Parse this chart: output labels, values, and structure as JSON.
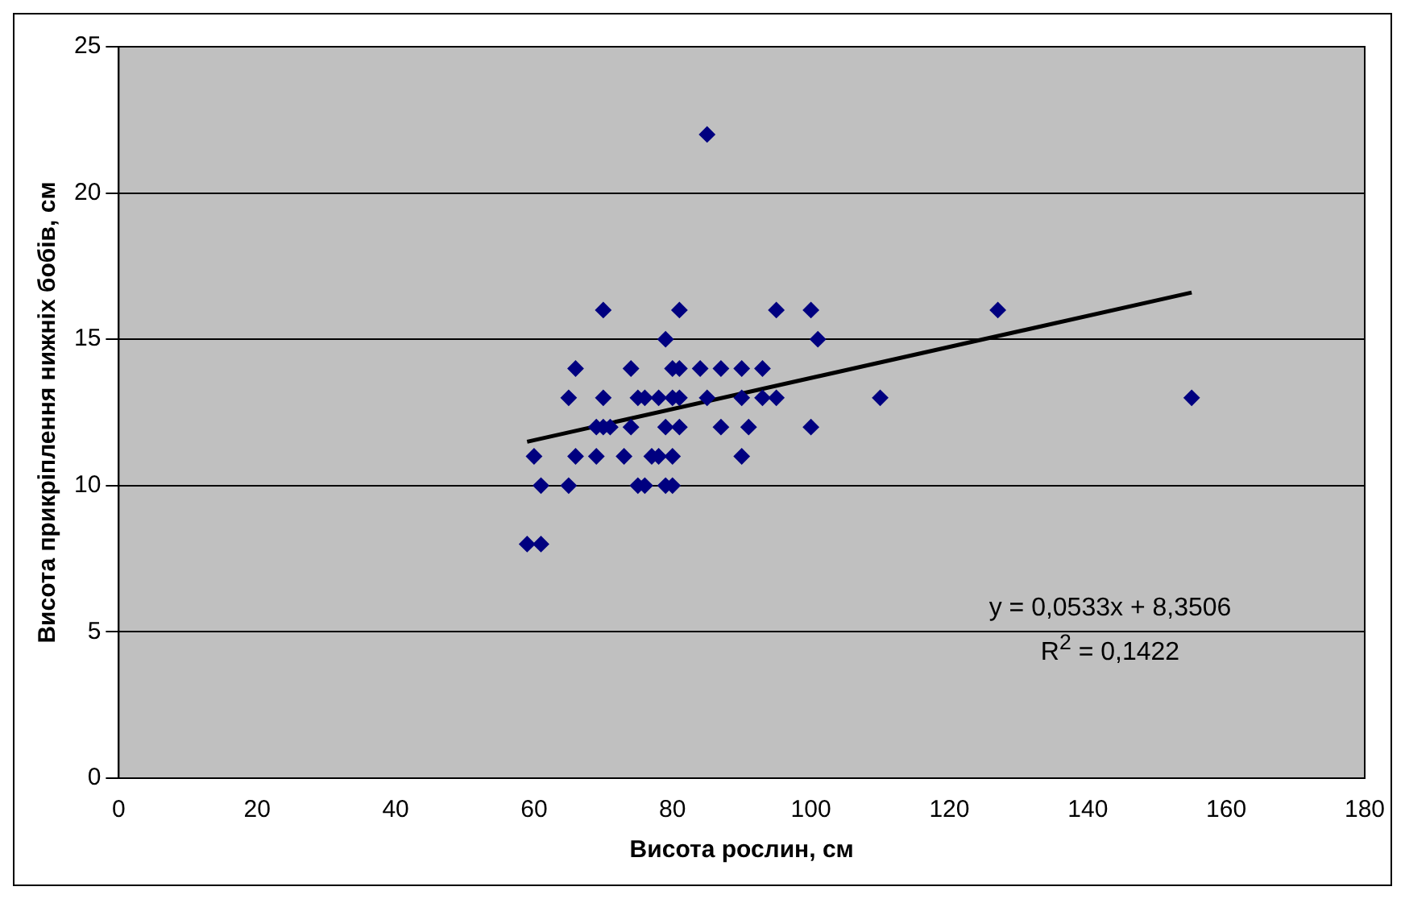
{
  "chart_data": {
    "type": "scatter",
    "xlabel": "Висота рослин, см",
    "ylabel": "Висота прикріплення нижніх бобів, см",
    "xlim": [
      0,
      180
    ],
    "xticks": [
      0,
      20,
      40,
      60,
      80,
      100,
      120,
      140,
      160,
      180
    ],
    "ylim": [
      0,
      25
    ],
    "yticks": [
      0,
      5,
      10,
      15,
      20,
      25
    ],
    "grid": "y",
    "legend": false,
    "annotations": [
      "y = 0,0533x + 8,3506",
      "R$^{2}$ = 0,1422"
    ],
    "series": [
      {
        "marker": "diamond",
        "color": "#000080",
        "x": [
          70,
          81,
          95,
          100,
          127,
          85,
          79,
          101,
          66,
          74,
          80,
          81,
          84,
          87,
          90,
          93,
          65,
          70,
          75,
          76,
          78,
          80,
          81,
          85,
          90,
          93,
          95,
          110,
          155,
          69,
          70,
          71,
          74,
          79,
          81,
          87,
          91,
          100,
          60,
          66,
          69,
          73,
          77,
          78,
          80,
          90,
          61,
          65,
          75,
          76,
          79,
          80,
          59,
          61
        ],
        "values": [
          16,
          16,
          16,
          16,
          16,
          22,
          15,
          15,
          14,
          14,
          14,
          14,
          14,
          14,
          14,
          14,
          13,
          13,
          13,
          13,
          13,
          13,
          13,
          13,
          13,
          13,
          13,
          13,
          13,
          12,
          12,
          12,
          12,
          12,
          12,
          12,
          12,
          12,
          11,
          11,
          11,
          11,
          11,
          11,
          11,
          11,
          10,
          10,
          10,
          10,
          10,
          10,
          8,
          8
        ]
      },
      {
        "type": "line",
        "marker": "none",
        "color": "#000000",
        "x": [
          59,
          155
        ],
        "values": [
          11.5,
          16.6
        ]
      }
    ]
  }
}
